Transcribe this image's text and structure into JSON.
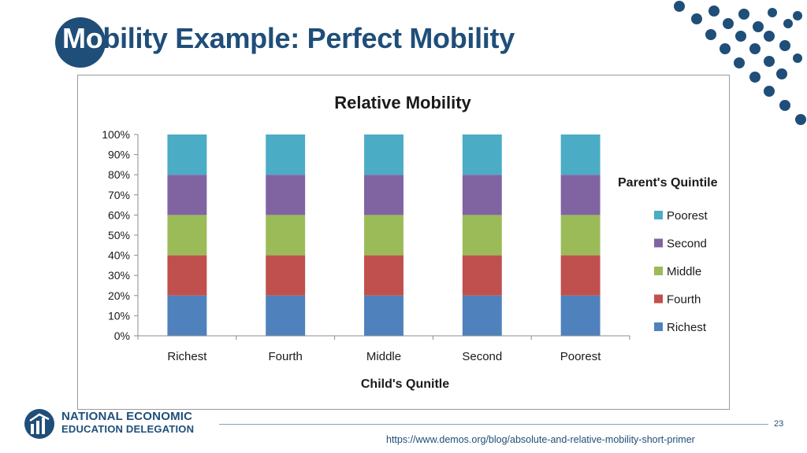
{
  "slide": {
    "title_prefix": "Mo",
    "title_rest": "bility Example: Perfect Mobility",
    "page_number": "23",
    "source_url": "https://www.demos.org/blog/absolute-and-relative-mobility-short-primer",
    "org_line1": "NATIONAL ECONOMIC",
    "org_line2": "EDUCATION DELEGATION",
    "accent_color": "#1f4e79"
  },
  "chart_data": {
    "type": "bar",
    "stacked": true,
    "title": "Relative Mobility",
    "xlabel": "Child's Qunitle",
    "ylabel": "",
    "ylim": [
      0,
      100
    ],
    "y_ticks": [
      "0%",
      "10%",
      "20%",
      "30%",
      "40%",
      "50%",
      "60%",
      "70%",
      "80%",
      "90%",
      "100%"
    ],
    "categories": [
      "Richest",
      "Fourth",
      "Middle",
      "Second",
      "Poorest"
    ],
    "legend_title": "Parent's Quintile",
    "legend_position": "right",
    "grid": false,
    "series": [
      {
        "name": "Richest",
        "color": "#4f81bd",
        "values": [
          20,
          20,
          20,
          20,
          20
        ]
      },
      {
        "name": "Fourth",
        "color": "#c0504d",
        "values": [
          20,
          20,
          20,
          20,
          20
        ]
      },
      {
        "name": "Middle",
        "color": "#9bbb59",
        "values": [
          20,
          20,
          20,
          20,
          20
        ]
      },
      {
        "name": "Second",
        "color": "#8064a2",
        "values": [
          20,
          20,
          20,
          20,
          20
        ]
      },
      {
        "name": "Poorest",
        "color": "#4bacc6",
        "values": [
          20,
          20,
          20,
          20,
          20
        ]
      }
    ]
  }
}
